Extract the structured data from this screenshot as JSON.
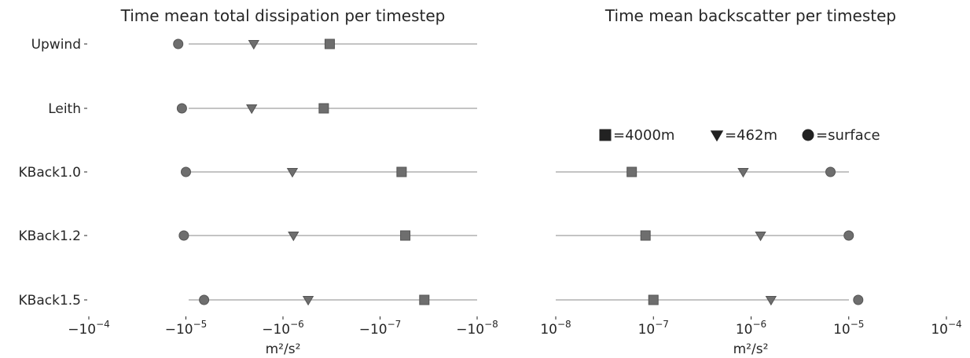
{
  "chart_data": [
    {
      "type": "scatter",
      "title": "Time mean total dissipation per timestep",
      "xlabel": "m²/s²",
      "xscale": "symlog-negative",
      "xlim": [
        -0.0001,
        -1e-08
      ],
      "xticks": [
        {
          "value": -0.0001,
          "base": "−10",
          "exp": "−4"
        },
        {
          "value": -1e-05,
          "base": "−10",
          "exp": "−5"
        },
        {
          "value": -1e-06,
          "base": "−10",
          "exp": "−6"
        },
        {
          "value": -1e-07,
          "base": "−10",
          "exp": "−7"
        },
        {
          "value": -1e-08,
          "base": "−10",
          "exp": "−8"
        }
      ],
      "categories": [
        "Upwind",
        "Leith",
        "KBack1.0",
        "KBack1.2",
        "KBack1.5"
      ],
      "series": [
        {
          "name": "4000m",
          "marker": "square",
          "values": [
            -3.3e-07,
            -3.8e-07,
            -6e-08,
            -5.5e-08,
            -3.5e-08
          ]
        },
        {
          "name": "462m",
          "marker": "triangle",
          "values": [
            -2e-06,
            -2.1e-06,
            -8e-07,
            -7.8e-07,
            -5.5e-07
          ]
        },
        {
          "name": "surface",
          "marker": "circle",
          "values": [
            -1.2e-05,
            -1.1e-05,
            -1e-05,
            -1.05e-05,
            -6.5e-06
          ]
        }
      ]
    },
    {
      "type": "scatter",
      "title": "Time mean backscatter per timestep",
      "xlabel": "m²/s²",
      "xscale": "log",
      "xlim": [
        1e-08,
        0.0001
      ],
      "xticks": [
        {
          "value": 1e-08,
          "base": "10",
          "exp": "−8"
        },
        {
          "value": 1e-07,
          "base": "10",
          "exp": "−7"
        },
        {
          "value": 1e-06,
          "base": "10",
          "exp": "−6"
        },
        {
          "value": 1e-05,
          "base": "10",
          "exp": "−5"
        },
        {
          "value": 0.0001,
          "base": "10",
          "exp": "−4"
        }
      ],
      "categories": [
        "KBack1.0",
        "KBack1.2",
        "KBack1.5"
      ],
      "series": [
        {
          "name": "4000m",
          "marker": "square",
          "values": [
            6e-08,
            8.3e-08,
            1e-07
          ]
        },
        {
          "name": "462m",
          "marker": "triangle",
          "values": [
            8.3e-07,
            1.25e-06,
            1.6e-06
          ]
        },
        {
          "name": "surface",
          "marker": "circle",
          "values": [
            6.5e-06,
            1e-05,
            1.25e-05
          ]
        }
      ],
      "legend": {
        "placement": "upper-center",
        "entries": [
          {
            "marker": "square",
            "text": "=4000m"
          },
          {
            "marker": "triangle",
            "text": "=462m"
          },
          {
            "marker": "circle",
            "text": "=surface"
          }
        ]
      }
    }
  ],
  "colors": {
    "marker": "#6e6e6e",
    "marker_edge": "#555555",
    "line": "#a0a0a0",
    "legend_marker": "#222222",
    "text": "#262626"
  }
}
